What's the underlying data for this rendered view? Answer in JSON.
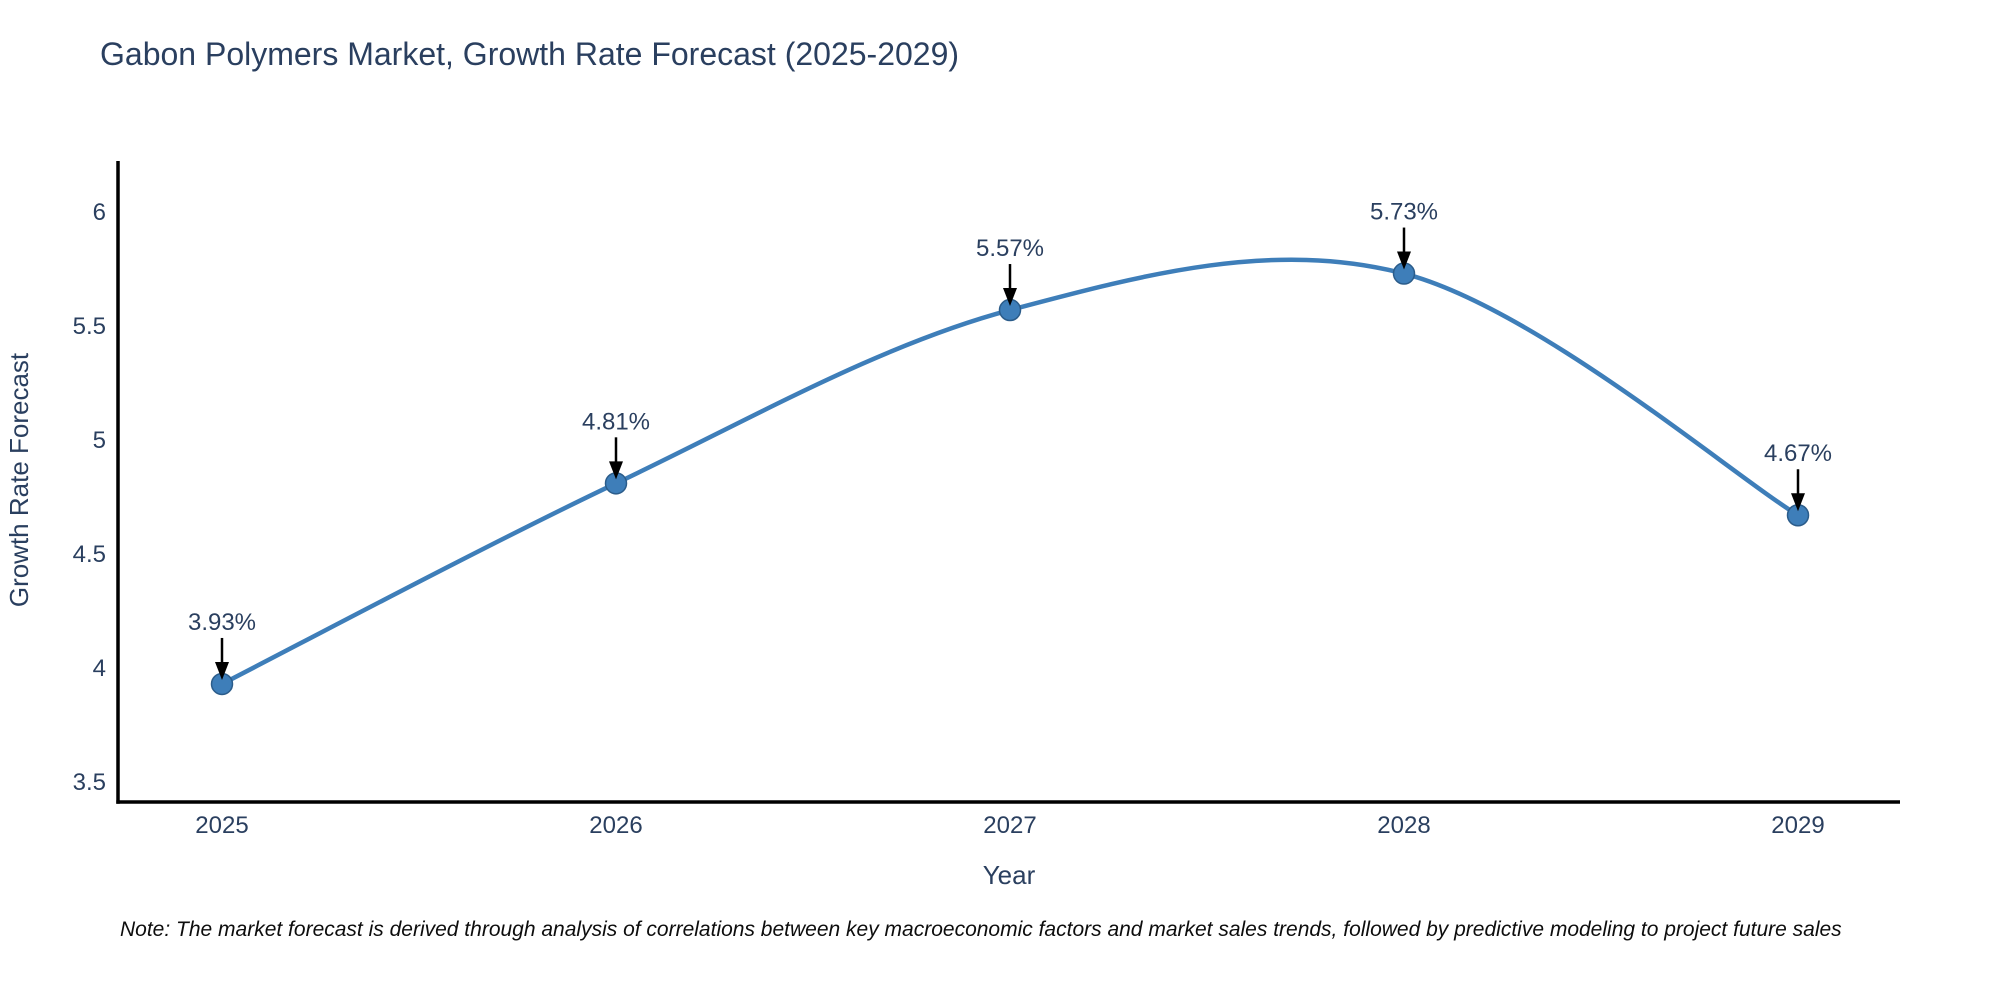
{
  "title": "Gabon Polymers Market, Growth Rate Forecast (2025-2029)",
  "note": "Note: The market forecast is derived through analysis of correlations between key macroeconomic factors and market sales trends, followed by predictive modeling to project future sales",
  "chart_data": {
    "type": "line",
    "title": "Gabon Polymers Market, Growth Rate Forecast (2025-2029)",
    "xlabel": "Year",
    "ylabel": "Growth Rate Forecast",
    "x": [
      2025,
      2026,
      2027,
      2028,
      2029
    ],
    "values": [
      3.93,
      4.81,
      5.57,
      5.73,
      4.67
    ],
    "labels": [
      "3.93%",
      "4.81%",
      "5.57%",
      "5.73%",
      "4.67%"
    ],
    "yticks": [
      3.5,
      4,
      4.5,
      5,
      5.5,
      6
    ],
    "xticks": [
      2025,
      2026,
      2027,
      2028,
      2029
    ],
    "ylim": [
      3.41,
      6.22
    ],
    "xlim": [
      2024.74,
      2029.26
    ],
    "line_shape": "spline",
    "grid": false,
    "legend": "none",
    "line_color": "#3e7eb9",
    "marker_color": "#3e7eb9",
    "marker_edge_color": "#2b5c8a",
    "arrow_color": "#000000",
    "axis_color": "#000000",
    "text_color": "#2a3f5f"
  }
}
